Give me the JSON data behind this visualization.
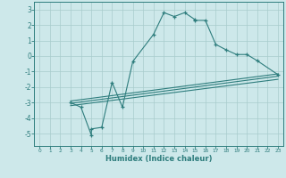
{
  "title": "",
  "xlabel": "Humidex (Indice chaleur)",
  "xlim": [
    -0.5,
    23.5
  ],
  "ylim": [
    -5.8,
    3.5
  ],
  "xticks": [
    0,
    1,
    2,
    3,
    4,
    5,
    6,
    7,
    8,
    9,
    10,
    11,
    12,
    13,
    14,
    15,
    16,
    17,
    18,
    19,
    20,
    21,
    22,
    23
  ],
  "yticks": [
    -5,
    -4,
    -3,
    -2,
    -1,
    0,
    1,
    2,
    3
  ],
  "line_color": "#2e7d7d",
  "bg_color": "#cde8ea",
  "grid_color": "#a8cccc",
  "main_x": [
    3,
    4,
    5,
    5,
    6,
    7,
    8,
    9,
    11,
    12,
    13,
    14,
    15,
    15,
    16,
    17,
    18,
    19,
    20,
    21,
    23
  ],
  "main_y": [
    -3.0,
    -3.3,
    -5.1,
    -4.7,
    -4.6,
    -1.7,
    -3.3,
    -0.35,
    1.4,
    2.8,
    2.55,
    2.8,
    2.35,
    2.3,
    2.3,
    0.75,
    0.4,
    0.1,
    0.1,
    -0.3,
    -1.2
  ],
  "trend1_x": [
    3,
    23
  ],
  "trend1_y": [
    -2.9,
    -1.15
  ],
  "trend2_x": [
    3,
    23
  ],
  "trend2_y": [
    -3.05,
    -1.3
  ],
  "trend3_x": [
    3,
    23
  ],
  "trend3_y": [
    -3.2,
    -1.5
  ]
}
